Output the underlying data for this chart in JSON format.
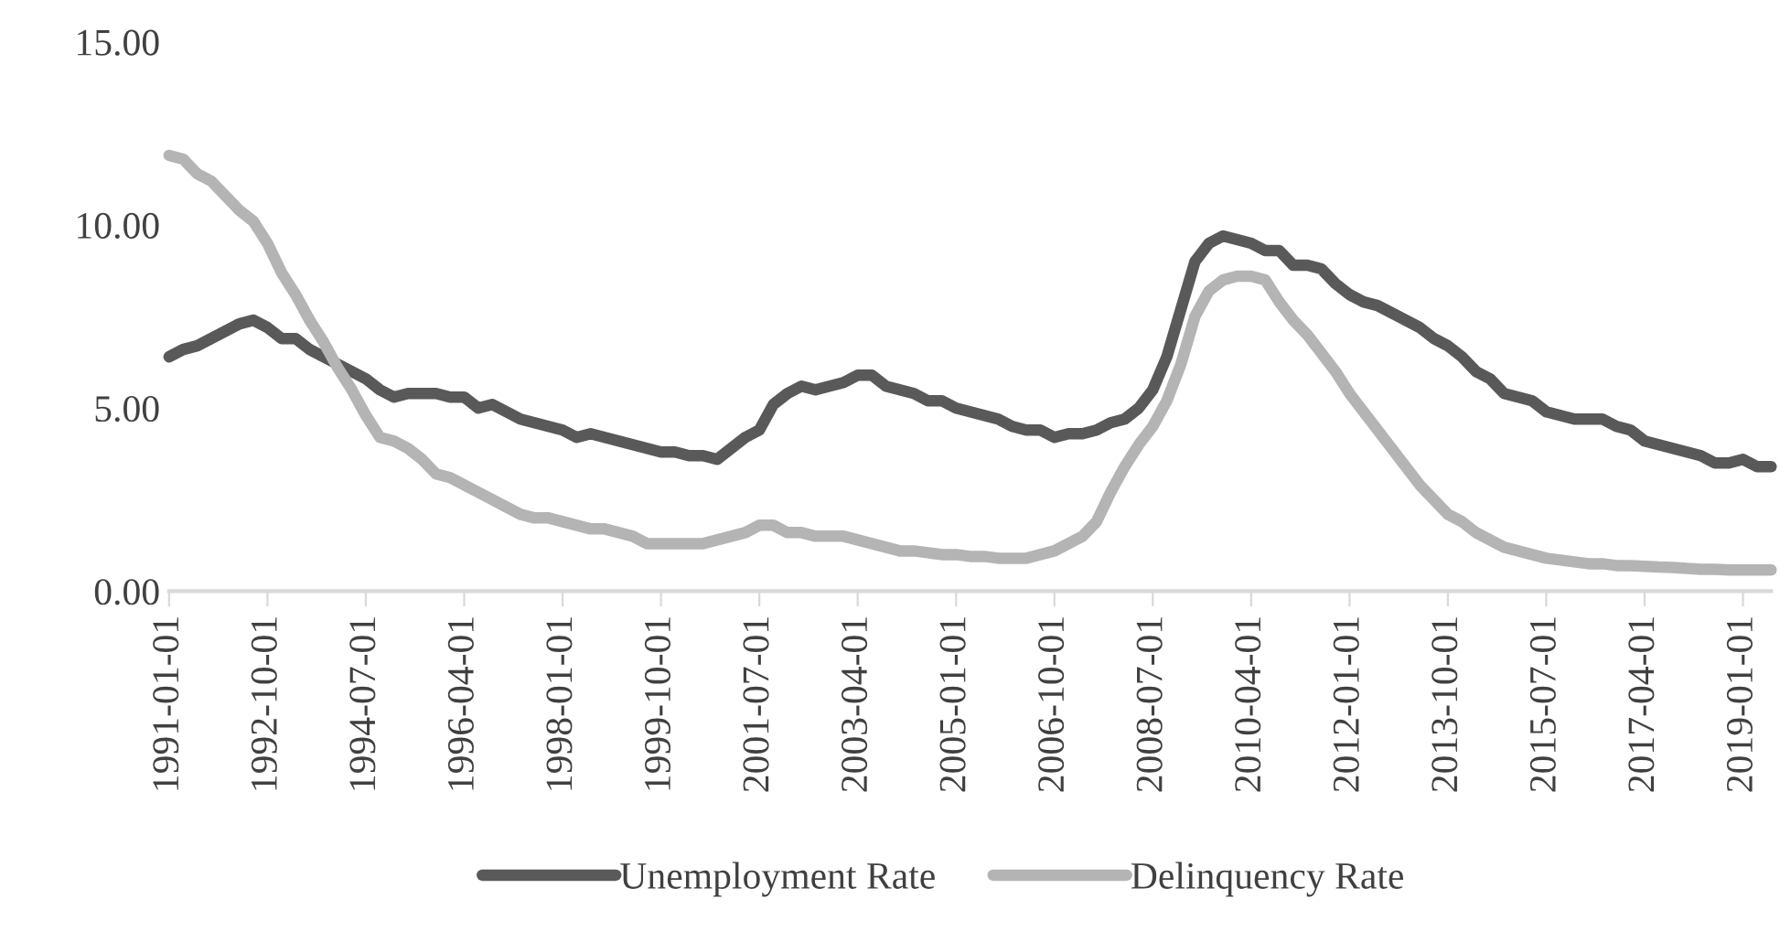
{
  "chart_data": {
    "type": "line",
    "categories": [
      "1991-01-01",
      null,
      null,
      null,
      null,
      null,
      null,
      "1992-10-01",
      null,
      null,
      null,
      null,
      null,
      null,
      "1994-07-01",
      null,
      null,
      null,
      null,
      null,
      null,
      "1996-04-01",
      null,
      null,
      null,
      null,
      null,
      null,
      "1998-01-01",
      null,
      null,
      null,
      null,
      null,
      null,
      "1999-10-01",
      null,
      null,
      null,
      null,
      null,
      null,
      "2001-07-01",
      null,
      null,
      null,
      null,
      null,
      null,
      "2003-04-01",
      null,
      null,
      null,
      null,
      null,
      null,
      "2005-01-01",
      null,
      null,
      null,
      null,
      null,
      null,
      "2006-10-01",
      null,
      null,
      null,
      null,
      null,
      null,
      "2008-07-01",
      null,
      null,
      null,
      null,
      null,
      null,
      "2010-04-01",
      null,
      null,
      null,
      null,
      null,
      null,
      "2012-01-01",
      null,
      null,
      null,
      null,
      null,
      null,
      "2013-10-01",
      null,
      null,
      null,
      null,
      null,
      null,
      "2015-07-01",
      null,
      null,
      null,
      null,
      null,
      null,
      "2017-04-01",
      null,
      null,
      null,
      null,
      null,
      null,
      "2019-01-01",
      null,
      null
    ],
    "series": [
      {
        "name": "Unemployment Rate",
        "color": "#595959",
        "values": [
          6.4,
          6.6,
          6.7,
          6.9,
          7.1,
          7.3,
          7.4,
          7.2,
          6.9,
          6.9,
          6.6,
          6.4,
          6.2,
          6.0,
          5.8,
          5.5,
          5.3,
          5.4,
          5.4,
          5.4,
          5.3,
          5.3,
          5.0,
          5.1,
          4.9,
          4.7,
          4.6,
          4.5,
          4.4,
          4.2,
          4.3,
          4.2,
          4.1,
          4.0,
          3.9,
          3.8,
          3.8,
          3.7,
          3.7,
          3.6,
          3.9,
          4.2,
          4.4,
          5.1,
          5.4,
          5.6,
          5.5,
          5.6,
          5.7,
          5.9,
          5.9,
          5.6,
          5.5,
          5.4,
          5.2,
          5.2,
          5.0,
          4.9,
          4.8,
          4.7,
          4.5,
          4.4,
          4.4,
          4.2,
          4.3,
          4.3,
          4.4,
          4.6,
          4.7,
          5.0,
          5.5,
          6.4,
          7.7,
          9.0,
          9.5,
          9.7,
          9.6,
          9.5,
          9.3,
          9.3,
          8.9,
          8.9,
          8.8,
          8.4,
          8.1,
          7.9,
          7.8,
          7.6,
          7.4,
          7.2,
          6.9,
          6.7,
          6.4,
          6.0,
          5.8,
          5.4,
          5.3,
          5.2,
          4.9,
          4.8,
          4.7,
          4.7,
          4.7,
          4.5,
          4.4,
          4.1,
          4.0,
          3.9,
          3.8,
          3.7,
          3.5,
          3.5,
          3.6,
          3.4,
          3.4
        ]
      },
      {
        "name": "Delinquency Rate",
        "color": "#b4b4b4",
        "values": [
          11.9,
          11.8,
          11.4,
          11.2,
          10.8,
          10.4,
          10.1,
          9.5,
          8.7,
          8.1,
          7.4,
          6.8,
          6.1,
          5.5,
          4.8,
          4.2,
          4.1,
          3.9,
          3.6,
          3.2,
          3.1,
          2.9,
          2.7,
          2.5,
          2.3,
          2.1,
          2.0,
          2.0,
          1.9,
          1.8,
          1.7,
          1.7,
          1.6,
          1.5,
          1.3,
          1.3,
          1.3,
          1.3,
          1.3,
          1.4,
          1.5,
          1.6,
          1.8,
          1.8,
          1.6,
          1.6,
          1.5,
          1.5,
          1.5,
          1.4,
          1.3,
          1.2,
          1.1,
          1.1,
          1.05,
          1.0,
          1.0,
          0.95,
          0.95,
          0.9,
          0.9,
          0.9,
          1.0,
          1.1,
          1.3,
          1.5,
          1.9,
          2.7,
          3.4,
          4.0,
          4.5,
          5.2,
          6.2,
          7.5,
          8.2,
          8.5,
          8.6,
          8.6,
          8.5,
          7.9,
          7.4,
          7.0,
          6.5,
          6.0,
          5.4,
          4.9,
          4.4,
          3.9,
          3.4,
          2.9,
          2.5,
          2.1,
          1.9,
          1.6,
          1.4,
          1.2,
          1.1,
          1.0,
          0.9,
          0.85,
          0.8,
          0.75,
          0.75,
          0.7,
          0.7,
          0.68,
          0.66,
          0.65,
          0.62,
          0.6,
          0.6,
          0.58,
          0.58,
          0.58,
          0.58
        ]
      }
    ],
    "ylim": [
      0,
      15
    ],
    "yticks": [
      {
        "value": 0,
        "label": "0.00"
      },
      {
        "value": 5,
        "label": "5.00"
      },
      {
        "value": 10,
        "label": "10.00"
      },
      {
        "value": 15,
        "label": "15.00"
      }
    ],
    "grid": false,
    "legend": "bottom",
    "marker": "none",
    "line_style": "solid"
  }
}
